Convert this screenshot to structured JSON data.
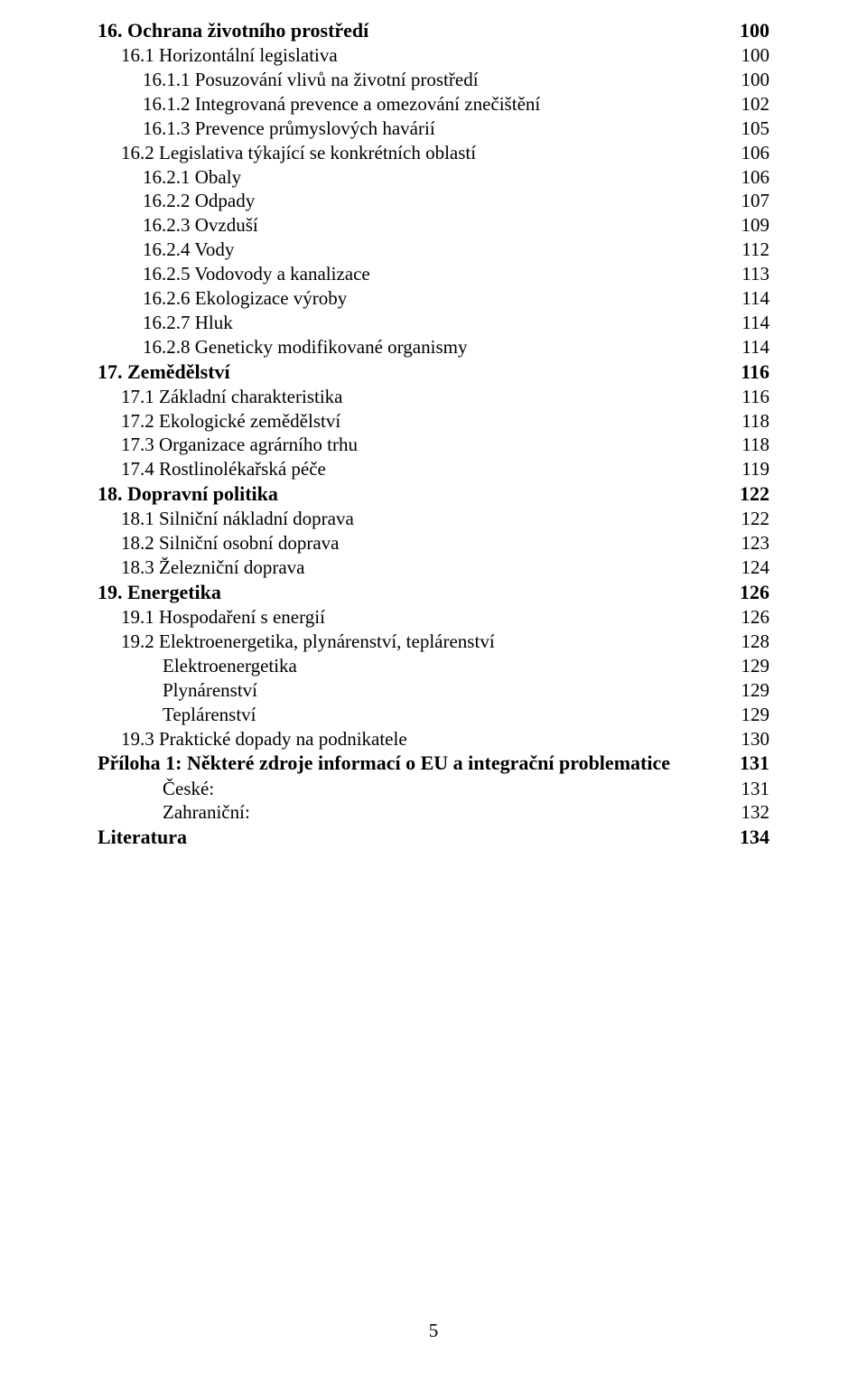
{
  "page_footer_number": "5",
  "toc": [
    {
      "level": 1,
      "label": "16. Ochrana životního prostředí",
      "page": "100"
    },
    {
      "level": 2,
      "label": "16.1 Horizontální legislativa",
      "page": "100"
    },
    {
      "level": 3,
      "label": "16.1.1 Posuzování vlivů na životní prostředí",
      "page": "100"
    },
    {
      "level": 3,
      "label": "16.1.2 Integrovaná prevence a omezování znečištění",
      "page": "102"
    },
    {
      "level": 3,
      "label": "16.1.3 Prevence průmyslových havárií",
      "page": "105"
    },
    {
      "level": 2,
      "label": "16.2 Legislativa týkající se konkrétních oblastí",
      "page": "106"
    },
    {
      "level": 3,
      "label": "16.2.1 Obaly",
      "page": "106"
    },
    {
      "level": 3,
      "label": "16.2.2 Odpady",
      "page": "107"
    },
    {
      "level": 3,
      "label": "16.2.3 Ovzduší",
      "page": "109"
    },
    {
      "level": 3,
      "label": "16.2.4 Vody",
      "page": "112"
    },
    {
      "level": 3,
      "label": "16.2.5 Vodovody a kanalizace",
      "page": "113"
    },
    {
      "level": 3,
      "label": "16.2.6 Ekologizace výroby",
      "page": "114"
    },
    {
      "level": 3,
      "label": "16.2.7 Hluk",
      "page": "114"
    },
    {
      "level": 3,
      "label": "16.2.8 Geneticky modifikované organismy",
      "page": "114"
    },
    {
      "level": 1,
      "label": "17. Zemědělství",
      "page": "116"
    },
    {
      "level": 2,
      "label": "17.1 Základní charakteristika",
      "page": "116"
    },
    {
      "level": 2,
      "label": "17.2 Ekologické zemědělství",
      "page": "118"
    },
    {
      "level": 2,
      "label": "17.3 Organizace agrárního trhu",
      "page": "118"
    },
    {
      "level": 2,
      "label": "17.4 Rostlinolékařská péče",
      "page": "119"
    },
    {
      "level": 1,
      "label": "18. Dopravní politika",
      "page": "122"
    },
    {
      "level": 2,
      "label": "18.1 Silniční nákladní doprava",
      "page": "122"
    },
    {
      "level": 2,
      "label": "18.2 Silniční osobní doprava",
      "page": "123"
    },
    {
      "level": 2,
      "label": "18.3 Železniční doprava",
      "page": "124"
    },
    {
      "level": 1,
      "label": "19. Energetika",
      "page": "126"
    },
    {
      "level": 2,
      "label": "19.1 Hospodaření s energií",
      "page": "126"
    },
    {
      "level": 2,
      "label": "19.2 Elektroenergetika, plynárenství, teplárenství",
      "page": "128"
    },
    {
      "level": 4,
      "label": "Elektroenergetika",
      "page": "129"
    },
    {
      "level": 4,
      "label": "Plynárenství",
      "page": "129"
    },
    {
      "level": 4,
      "label": "Teplárenství",
      "page": "129"
    },
    {
      "level": 2,
      "label": "19.3 Praktické dopady na podnikatele",
      "page": "130"
    },
    {
      "level": 1,
      "label": "Příloha 1: Některé zdroje informací o EU a integrační problematice",
      "page": "131"
    },
    {
      "level": 4,
      "label": "České:",
      "page": "131"
    },
    {
      "level": 4,
      "label": "Zahraniční:",
      "page": "132"
    },
    {
      "level": 1,
      "label": "Literatura",
      "page": "134"
    }
  ]
}
